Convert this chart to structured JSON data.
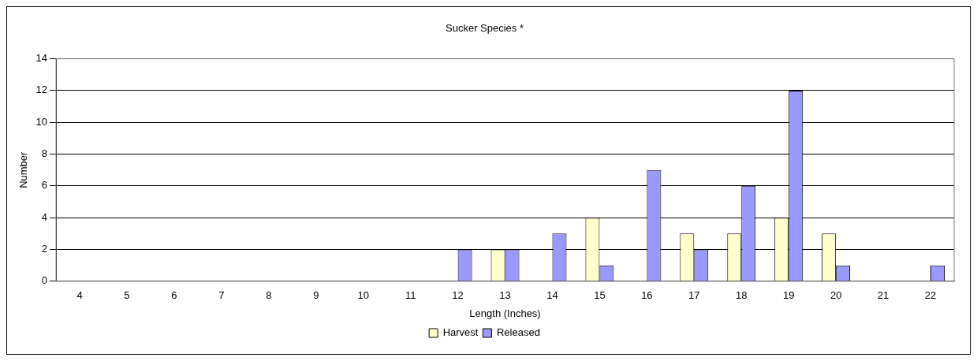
{
  "chart_data": {
    "type": "bar",
    "title": "Sucker Species *",
    "xlabel": "Length (Inches)",
    "ylabel": "Number",
    "categories": [
      "4",
      "5",
      "6",
      "7",
      "8",
      "9",
      "10",
      "11",
      "12",
      "13",
      "14",
      "15",
      "16",
      "17",
      "18",
      "19",
      "20",
      "21",
      "22"
    ],
    "series": [
      {
        "name": "Harvest",
        "color": "#ffffcc",
        "values": [
          0,
          0,
          0,
          0,
          0,
          0,
          0,
          0,
          0,
          2,
          0,
          4,
          0,
          3,
          3,
          4,
          3,
          0,
          0
        ]
      },
      {
        "name": "Released",
        "color": "#9999ff",
        "values": [
          0,
          0,
          0,
          0,
          0,
          0,
          0,
          0,
          2,
          2,
          3,
          1,
          7,
          2,
          6,
          12,
          1,
          0,
          1
        ]
      }
    ],
    "ylim": [
      0,
      14
    ],
    "yticks": [
      0,
      2,
      4,
      6,
      8,
      10,
      12,
      14
    ],
    "grid": "y",
    "legend": "bottom"
  }
}
